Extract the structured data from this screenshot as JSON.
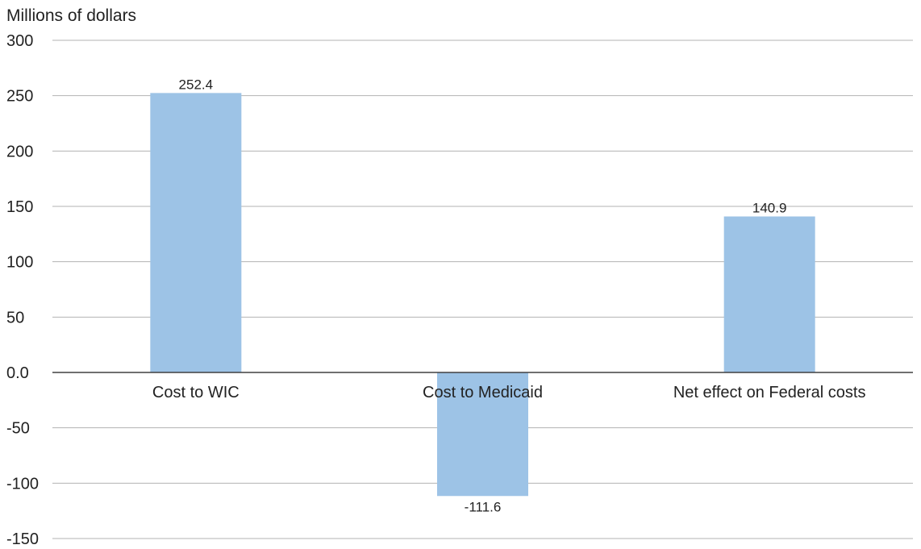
{
  "chart_data": {
    "type": "bar",
    "title": "",
    "ylabel": "Millions of dollars",
    "xlabel": "",
    "categories": [
      "Cost to WIC",
      "Cost to Medicaid",
      "Net effect on Federal costs"
    ],
    "values": [
      252.4,
      -111.6,
      140.9
    ],
    "data_labels": [
      "252.4",
      "-111.6",
      "140.9"
    ],
    "ylim": [
      -150,
      300
    ],
    "yticks": [
      300,
      250,
      200,
      150,
      100,
      50,
      0,
      -50,
      -100,
      -150
    ],
    "ytick_labels": [
      "300",
      "250",
      "200",
      "150",
      "100",
      "50",
      "0.0",
      "-50",
      "-100",
      "-150"
    ],
    "grid": true,
    "legend": "none",
    "colors": {
      "bar": "#9dc3e6",
      "grid": "#b3b3b3",
      "axis": "#404040"
    }
  }
}
